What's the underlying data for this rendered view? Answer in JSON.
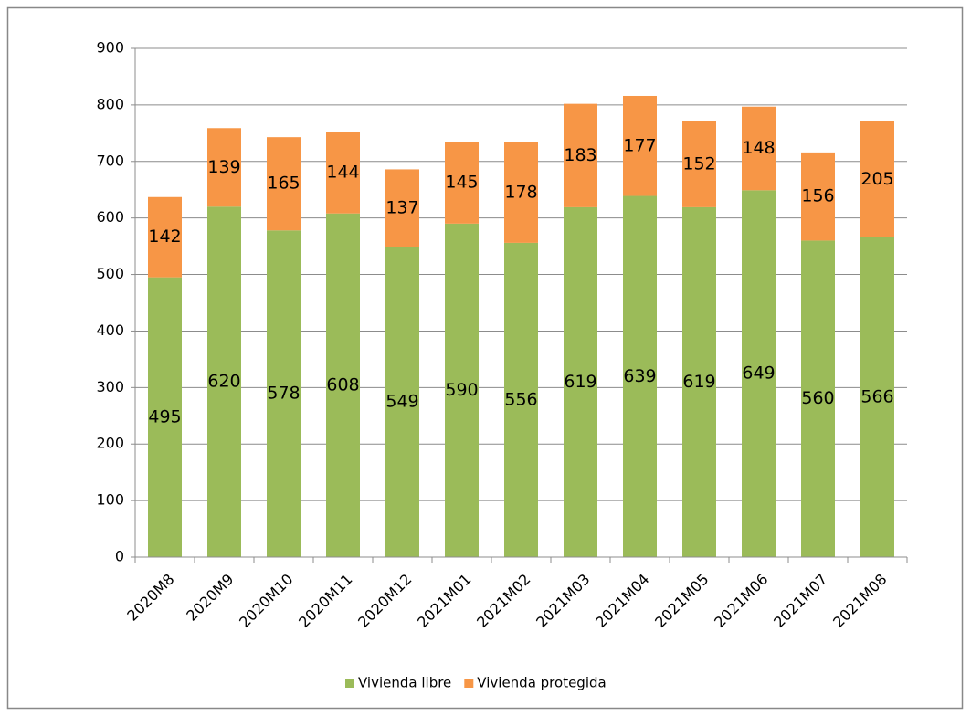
{
  "chart_data": {
    "type": "bar",
    "stacked": true,
    "categories": [
      "2020M8",
      "2020M9",
      "2020M10",
      "2020M11",
      "2020M12",
      "2021M01",
      "2021M02",
      "2021M03",
      "2021M04",
      "2021M05",
      "2021M06",
      "2021M07",
      "2021M08"
    ],
    "series": [
      {
        "name": "Vivienda libre",
        "color": "#9bbb59",
        "values": [
          495,
          620,
          578,
          608,
          549,
          590,
          556,
          619,
          639,
          619,
          649,
          560,
          566
        ]
      },
      {
        "name": "Vivienda protegida",
        "color": "#f79646",
        "values": [
          142,
          139,
          165,
          144,
          137,
          145,
          178,
          183,
          177,
          152,
          148,
          156,
          205
        ]
      }
    ],
    "ylim": [
      0,
      900
    ],
    "yticks": [
      0,
      100,
      200,
      300,
      400,
      500,
      600,
      700,
      800,
      900
    ],
    "grid": true,
    "legend": "bottom"
  }
}
